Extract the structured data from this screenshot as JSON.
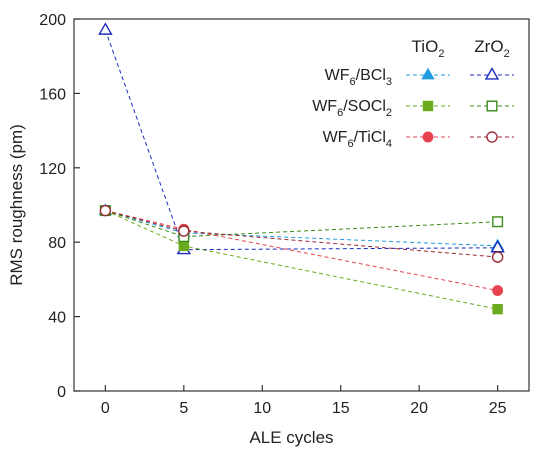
{
  "chart_data": {
    "type": "scatter",
    "xlabel": "ALE cycles",
    "ylabel": "RMS roughness (pm)",
    "xlim": [
      -2,
      27
    ],
    "ylim": [
      0,
      200
    ],
    "xticks": [
      0,
      5,
      10,
      15,
      20,
      25
    ],
    "yticks": [
      0,
      40,
      80,
      120,
      160,
      200
    ],
    "xticklabels": [
      "0",
      "5",
      "10",
      "15",
      "20",
      "25"
    ],
    "yticklabels": [
      "0",
      "40",
      "80",
      "120",
      "160",
      "200"
    ],
    "connected_by": "dashed lines",
    "legend": {
      "placement": "top-right",
      "column_headers": [
        {
          "base": "TiO",
          "sub": "2"
        },
        {
          "base": "ZrO",
          "sub": "2"
        }
      ],
      "rows": [
        {
          "parts": [
            {
              "t": "WF",
              "sub": false
            },
            {
              "t": "6",
              "sub": true
            },
            {
              "t": "/BCl",
              "sub": false
            },
            {
              "t": "3",
              "sub": true
            }
          ]
        },
        {
          "parts": [
            {
              "t": "WF",
              "sub": false
            },
            {
              "t": "6",
              "sub": true
            },
            {
              "t": "/SOCl",
              "sub": false
            },
            {
              "t": "2",
              "sub": true
            }
          ]
        },
        {
          "parts": [
            {
              "t": "WF",
              "sub": false
            },
            {
              "t": "6",
              "sub": true
            },
            {
              "t": "/TiCl",
              "sub": false
            },
            {
              "t": "4",
              "sub": true
            }
          ]
        }
      ]
    },
    "series": [
      {
        "precursor": "WF6/BCl3",
        "substrate": "TiO2",
        "color": "#1f9be0",
        "marker": "triangle",
        "filled": true,
        "x": [
          0,
          5,
          25
        ],
        "y": [
          97,
          85,
          78
        ]
      },
      {
        "precursor": "WF6/BCl3",
        "substrate": "ZrO2",
        "color": "#1a2bbf",
        "marker": "triangle",
        "filled": false,
        "x": [
          0,
          5,
          25
        ],
        "y": [
          194,
          76,
          77
        ]
      },
      {
        "precursor": "WF6/SOCl2",
        "substrate": "TiO2",
        "color": "#6aaa1e",
        "marker": "square",
        "filled": true,
        "x": [
          0,
          5,
          25
        ],
        "y": [
          97,
          78,
          44
        ]
      },
      {
        "precursor": "WF6/SOCl2",
        "substrate": "ZrO2",
        "color": "#3a8c1a",
        "marker": "square",
        "filled": false,
        "x": [
          0,
          5,
          25
        ],
        "y": [
          97,
          83,
          91
        ]
      },
      {
        "precursor": "WF6/TiCl4",
        "substrate": "TiO2",
        "color": "#e8424f",
        "marker": "circle",
        "filled": true,
        "x": [
          0,
          5,
          25
        ],
        "y": [
          97,
          87,
          54
        ]
      },
      {
        "precursor": "WF6/TiCl4",
        "substrate": "ZrO2",
        "color": "#9a2a33",
        "marker": "circle",
        "filled": false,
        "x": [
          0,
          5,
          25
        ],
        "y": [
          97,
          86,
          72
        ]
      }
    ]
  }
}
